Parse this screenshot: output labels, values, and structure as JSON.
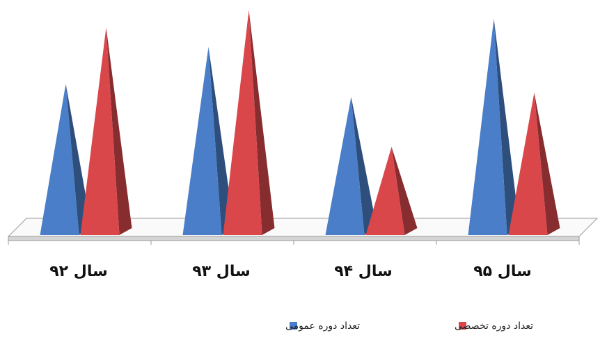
{
  "chart_data": {
    "type": "bar",
    "bar_shape": "pyramid-3d",
    "categories": [
      "سال ۹۲",
      "سال ۹۳",
      "سال ۹۴",
      "سال ۹۵"
    ],
    "series": [
      {
        "name": "تعداد دوره عمومی",
        "color": "#4a7ec8",
        "values": [
          68,
          85,
          62,
          98
        ]
      },
      {
        "name": "تعداد دوره تخصصی",
        "color": "#d9474b",
        "values": [
          94,
          102,
          39,
          64
        ]
      }
    ],
    "title": "",
    "xlabel": "",
    "ylabel": "",
    "ylim": [
      0,
      105
    ],
    "grid": false,
    "legend_position": "bottom"
  }
}
